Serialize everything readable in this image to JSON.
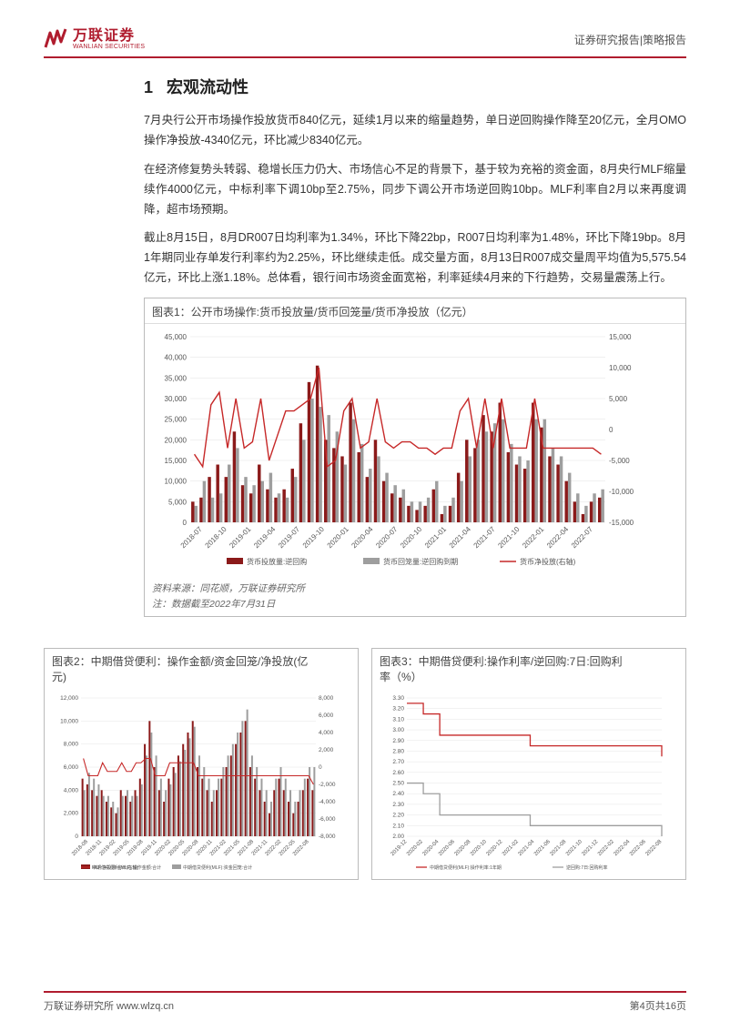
{
  "header": {
    "logo_cn": "万联证券",
    "logo_en": "WANLIAN SECURITIES",
    "right": "证券研究报告|策略报告"
  },
  "section_number": "1",
  "section_title": "宏观流动性",
  "paragraphs": [
    "7月央行公开市场操作投放货币840亿元，延续1月以来的缩量趋势，单日逆回购操作降至20亿元，全月OMO操作净投放-4340亿元，环比减少8340亿元。",
    "在经济修复势头转弱、稳增长压力仍大、市场信心不足的背景下，基于较为充裕的资金面，8月央行MLF缩量续作4000亿元，中标利率下调10bp至2.75%，同步下调公开市场逆回购10bp。MLF利率自2月以来再度调降，超市场预期。",
    "截止8月15日，8月DR007日均利率为1.34%，环比下降22bp，R007日均利率为1.48%，环比下降19bp。8月1年期同业存单发行利率约为2.25%，环比继续走低。成交量方面，8月13日R007成交量周平均值为5,575.54亿元，环比上涨1.18%。总体看，银行间市场资金面宽裕，利率延续4月来的下行趋势，交易量震荡上行。"
  ],
  "chart1": {
    "title": "图表1：公开市场操作:货币投放量/货币回笼量/货币净投放（亿元）",
    "source": "资料来源：同花顺，万联证券研究所",
    "note": "注：数据截至2022年7月31日",
    "type": "bar+line",
    "x_labels": [
      "2018-07",
      "2018-10",
      "2019-01",
      "2019-04",
      "2019-07",
      "2019-10",
      "2020-01",
      "2020-04",
      "2020-07",
      "2020-10",
      "2021-01",
      "2021-04",
      "2021-07",
      "2021-10",
      "2022-01",
      "2022-04",
      "2022-07"
    ],
    "left_ylim": [
      0,
      45000
    ],
    "left_ytick_step": 5000,
    "right_ylim": [
      -15000,
      15000
    ],
    "right_ytick_step": 5000,
    "legend": [
      "货币投放量:逆回购",
      "货币回笼量:逆回购到期",
      "货币净投放(右轴)"
    ],
    "legend_colors": [
      "#8b1a1a",
      "#9e9e9e",
      "#c62828"
    ],
    "bars_dark": [
      5000,
      6000,
      11000,
      14000,
      11000,
      22000,
      9000,
      7000,
      14000,
      8000,
      6000,
      8000,
      13000,
      24000,
      34000,
      38000,
      20000,
      18000,
      16000,
      29000,
      17000,
      11000,
      20000,
      10000,
      7000,
      6000,
      4000,
      3000,
      4000,
      8000,
      2000,
      4000,
      12000,
      20000,
      18000,
      26000,
      22000,
      29000,
      17000,
      14000,
      13000,
      29000,
      23000,
      16000,
      14000,
      10000,
      5000,
      2000,
      5000,
      6000
    ],
    "bars_grey": [
      4000,
      10000,
      6000,
      7000,
      14000,
      18000,
      11000,
      9000,
      10000,
      12000,
      7000,
      6000,
      11000,
      20000,
      30000,
      28000,
      26000,
      22000,
      14000,
      25000,
      19000,
      13000,
      16000,
      12000,
      9000,
      8000,
      5000,
      5000,
      6000,
      10000,
      4000,
      6000,
      10000,
      16000,
      20000,
      22000,
      24000,
      25000,
      19000,
      16000,
      15000,
      25000,
      25000,
      18000,
      16000,
      12000,
      7000,
      4000,
      7000,
      8000
    ],
    "line_net": [
      -4000,
      -6000,
      4000,
      6000,
      -3000,
      5000,
      -3000,
      -2000,
      5000,
      -5000,
      -1000,
      3000,
      3000,
      4000,
      5000,
      10000,
      -6000,
      -5000,
      3000,
      5000,
      -3000,
      -2000,
      5000,
      -2000,
      -3000,
      -2000,
      -2000,
      -3000,
      -3000,
      -4000,
      -3000,
      -3000,
      3000,
      5000,
      -3000,
      5000,
      -3000,
      5000,
      -3000,
      -3000,
      -3000,
      5000,
      -3000,
      -3000,
      -3000,
      -3000,
      -3000,
      -3000,
      -3000,
      -4000
    ],
    "background_color": "#ffffff",
    "grid_color": "#e6e6e6",
    "title_fontsize": 12
  },
  "chart2": {
    "title_line1": "图表2：中期借贷便利：操作金额/资金回笼/净投放(亿",
    "title_line2": "元)",
    "type": "bar+line",
    "x_labels": [
      "2018-08",
      "2018-11",
      "2019-02",
      "2019-05",
      "2019-08",
      "2019-11",
      "2020-02",
      "2020-05",
      "2020-08",
      "2020-11",
      "2021-02",
      "2021-05",
      "2021-08",
      "2021-11",
      "2022-02",
      "2022-05",
      "2022-08"
    ],
    "left_ylim": [
      0,
      12000
    ],
    "left_ytick_step": 2000,
    "right_ylim": [
      -8000,
      8000
    ],
    "right_ytick_step": 2000,
    "legend": [
      "中期借贷便利(MLF):操作金额:合计",
      "中期借贷便利(MLF):资金回笼:合计",
      "MLF:净投放:合计(右轴)"
    ],
    "legend_colors": [
      "#8b1a1a",
      "#9e9e9e",
      "#c62828"
    ],
    "bars_dark": [
      5000,
      4500,
      4000,
      3500,
      4000,
      3000,
      2500,
      2000,
      4000,
      3500,
      3000,
      4000,
      5000,
      8000,
      10000,
      6000,
      4000,
      3000,
      5000,
      6000,
      7000,
      8000,
      9000,
      10000,
      6000,
      5000,
      4000,
      3000,
      4000,
      5000,
      6000,
      7000,
      8000,
      9000,
      10000,
      6000,
      5000,
      4000,
      3000,
      2000,
      4000,
      5000,
      4000,
      3000,
      2000,
      3000,
      4000,
      5000,
      4000
    ],
    "bars_grey": [
      4000,
      5500,
      5000,
      4500,
      3500,
      3500,
      3000,
      2500,
      3500,
      4000,
      3500,
      3500,
      4500,
      7000,
      9000,
      7000,
      5000,
      4000,
      4500,
      5500,
      6500,
      7500,
      8500,
      9500,
      7000,
      6000,
      5000,
      4000,
      5000,
      6000,
      7000,
      8000,
      9000,
      10000,
      11000,
      7000,
      6000,
      5000,
      4000,
      3000,
      5000,
      6000,
      5000,
      4000,
      3000,
      4000,
      5000,
      6000,
      6000
    ],
    "line_net": [
      1000,
      -1000,
      -1000,
      -1000,
      500,
      -500,
      -500,
      -500,
      500,
      -500,
      -500,
      500,
      500,
      1000,
      1000,
      -1000,
      -1000,
      -1000,
      500,
      500,
      500,
      500,
      500,
      500,
      -1000,
      -1000,
      -1000,
      -1000,
      -1000,
      -1000,
      -1000,
      -1000,
      -1000,
      -1000,
      -1000,
      -1000,
      -1000,
      -1000,
      -1000,
      -1000,
      -1000,
      -1000,
      -1000,
      -1000,
      -1000,
      -1000,
      -1000,
      -1000,
      -2000
    ],
    "background_color": "#ffffff",
    "grid_color": "#e6e6e6"
  },
  "chart3": {
    "title_line1": "图表3：中期借贷便利:操作利率/逆回购:7日:回购利",
    "title_line2": "率（%）",
    "type": "line",
    "x_labels": [
      "2019-12",
      "2020-02",
      "2020-04",
      "2020-06",
      "2020-08",
      "2020-10",
      "2020-12",
      "2021-02",
      "2021-04",
      "2021-06",
      "2021-08",
      "2021-10",
      "2021-12",
      "2022-02",
      "2022-04",
      "2022-06",
      "2022-08"
    ],
    "ylim": [
      2.0,
      3.3
    ],
    "ytick_step": 0.1,
    "legend": [
      "中期借贷便利(MLF):操作利率:1年期",
      "逆回购:7日:回购利率"
    ],
    "legend_colors": [
      "#c62828",
      "#9e9e9e"
    ],
    "line_mlf": [
      3.25,
      3.25,
      3.15,
      3.15,
      2.95,
      2.95,
      2.95,
      2.95,
      2.95,
      2.95,
      2.95,
      2.95,
      2.95,
      2.95,
      2.95,
      2.85,
      2.85,
      2.85,
      2.85,
      2.85,
      2.85,
      2.85,
      2.85,
      2.85,
      2.85,
      2.85,
      2.85,
      2.85,
      2.85,
      2.85,
      2.85,
      2.75
    ],
    "line_repo": [
      2.5,
      2.5,
      2.4,
      2.4,
      2.2,
      2.2,
      2.2,
      2.2,
      2.2,
      2.2,
      2.2,
      2.2,
      2.2,
      2.2,
      2.2,
      2.1,
      2.1,
      2.1,
      2.1,
      2.1,
      2.1,
      2.1,
      2.1,
      2.1,
      2.1,
      2.1,
      2.1,
      2.1,
      2.1,
      2.1,
      2.1,
      2.0
    ],
    "background_color": "#ffffff",
    "grid_color": "#e6e6e6"
  },
  "footer": {
    "left": "万联证券研究所  www.wlzq.cn",
    "right": "第4页共16页"
  }
}
